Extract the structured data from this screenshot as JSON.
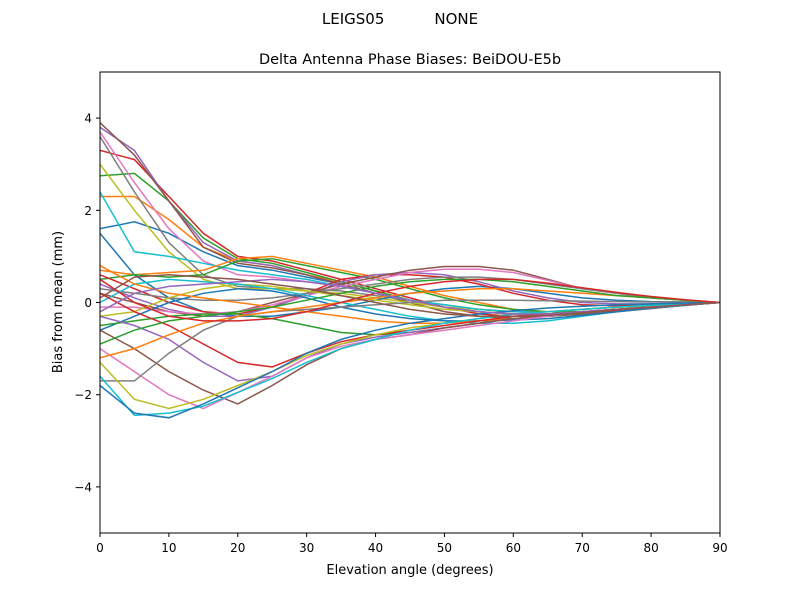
{
  "chart_data": {
    "type": "line",
    "suptitle_left": "LEIGS05",
    "suptitle_right": "NONE",
    "title": "Delta Antenna Phase Biases: BeiDOU-E5b",
    "xlabel": "Elevation angle (degrees)",
    "ylabel": "Bias from mean (mm)",
    "xlim": [
      0,
      90
    ],
    "ylim": [
      -5,
      5
    ],
    "xticks": [
      0,
      10,
      20,
      30,
      40,
      50,
      60,
      70,
      80,
      90
    ],
    "yticks": [
      -4,
      -2,
      0,
      2,
      4
    ],
    "ytick_labels": [
      "−4",
      "−2",
      "0",
      "2",
      "4"
    ],
    "grid": false,
    "colors": [
      "#1f77b4",
      "#ff7f0e",
      "#2ca02c",
      "#d62728",
      "#9467bd",
      "#8c564b",
      "#e377c2",
      "#7f7f7f",
      "#bcbd22",
      "#17becf"
    ],
    "x": [
      0,
      5,
      10,
      15,
      20,
      25,
      30,
      35,
      40,
      45,
      50,
      55,
      60,
      65,
      70,
      75,
      80,
      85,
      90
    ],
    "series": [
      {
        "values": [
          1.6,
          1.75,
          1.5,
          1.1,
          0.8,
          0.7,
          0.55,
          0.4,
          0.2,
          0.05,
          -0.1,
          -0.2,
          -0.25,
          -0.25,
          -0.2,
          -0.15,
          -0.1,
          -0.05,
          0
        ]
      },
      {
        "values": [
          2.3,
          2.3,
          1.8,
          1.2,
          0.9,
          0.8,
          0.6,
          0.45,
          0.25,
          0.05,
          -0.1,
          -0.2,
          -0.25,
          -0.25,
          -0.2,
          -0.15,
          -0.1,
          -0.05,
          0
        ]
      },
      {
        "values": [
          2.75,
          2.8,
          2.2,
          1.4,
          0.95,
          0.85,
          0.65,
          0.45,
          0.25,
          0.05,
          -0.1,
          -0.2,
          -0.25,
          -0.25,
          -0.2,
          -0.15,
          -0.1,
          -0.05,
          0
        ]
      },
      {
        "values": [
          3.3,
          3.1,
          2.3,
          1.5,
          1.0,
          0.9,
          0.7,
          0.5,
          0.3,
          0.1,
          -0.1,
          -0.25,
          -0.3,
          -0.3,
          -0.25,
          -0.18,
          -0.12,
          -0.06,
          0
        ]
      },
      {
        "values": [
          3.8,
          3.3,
          2.2,
          1.3,
          0.9,
          0.8,
          0.6,
          0.4,
          0.2,
          0.0,
          -0.2,
          -0.3,
          -0.35,
          -0.3,
          -0.25,
          -0.2,
          -0.13,
          -0.06,
          0
        ]
      },
      {
        "values": [
          3.9,
          3.2,
          2.2,
          1.2,
          0.85,
          0.75,
          0.6,
          0.4,
          0.2,
          0.0,
          -0.2,
          -0.3,
          -0.35,
          -0.3,
          -0.25,
          -0.2,
          -0.13,
          -0.06,
          0
        ]
      },
      {
        "values": [
          3.7,
          2.6,
          1.6,
          0.9,
          0.6,
          0.55,
          0.45,
          0.35,
          0.2,
          0.05,
          -0.1,
          -0.2,
          -0.25,
          -0.25,
          -0.2,
          -0.15,
          -0.1,
          -0.05,
          0
        ]
      },
      {
        "values": [
          3.6,
          2.4,
          1.3,
          0.6,
          0.35,
          0.3,
          0.3,
          0.25,
          0.15,
          0.05,
          -0.05,
          -0.15,
          -0.2,
          -0.2,
          -0.15,
          -0.1,
          -0.07,
          -0.03,
          0
        ]
      },
      {
        "values": [
          3.0,
          2.0,
          1.1,
          0.5,
          0.3,
          0.3,
          0.25,
          0.2,
          0.1,
          0.0,
          -0.1,
          -0.15,
          -0.2,
          -0.2,
          -0.15,
          -0.1,
          -0.07,
          -0.03,
          0
        ]
      },
      {
        "values": [
          2.4,
          1.1,
          1.0,
          0.85,
          0.7,
          0.6,
          0.5,
          0.35,
          0.2,
          0.05,
          -0.05,
          -0.15,
          -0.2,
          -0.2,
          -0.15,
          -0.1,
          -0.07,
          -0.03,
          0
        ]
      },
      {
        "values": [
          1.5,
          0.6,
          0.1,
          -0.2,
          -0.3,
          -0.3,
          -0.2,
          -0.1,
          0.05,
          0.2,
          0.3,
          0.35,
          0.3,
          0.2,
          0.1,
          0.05,
          0.02,
          0.01,
          0
        ]
      },
      {
        "values": [
          0.7,
          0.6,
          0.65,
          0.7,
          0.95,
          1.0,
          0.85,
          0.7,
          0.55,
          0.35,
          0.15,
          0,
          -0.15,
          -0.2,
          -0.2,
          -0.15,
          -0.1,
          -0.05,
          0
        ]
      },
      {
        "values": [
          0.5,
          0.6,
          0.55,
          0.6,
          0.9,
          0.95,
          0.8,
          0.65,
          0.5,
          0.3,
          0.1,
          -0.05,
          -0.15,
          -0.2,
          -0.2,
          -0.15,
          -0.1,
          -0.05,
          0
        ]
      },
      {
        "values": [
          0.6,
          0.3,
          0.0,
          -0.2,
          -0.25,
          -0.1,
          0.2,
          0.5,
          0.6,
          0.6,
          0.55,
          0.4,
          0.2,
          0.05,
          -0.05,
          -0.07,
          -0.05,
          -0.02,
          0
        ]
      },
      {
        "values": [
          0.4,
          0.1,
          -0.15,
          -0.3,
          -0.3,
          -0.1,
          0.15,
          0.45,
          0.6,
          0.65,
          0.6,
          0.45,
          0.25,
          0.1,
          0,
          -0.03,
          -0.03,
          -0.01,
          0
        ]
      },
      {
        "values": [
          0.2,
          0.0,
          -0.2,
          -0.3,
          -0.2,
          0.0,
          0.2,
          0.4,
          0.55,
          0.7,
          0.78,
          0.78,
          0.7,
          0.5,
          0.3,
          0.2,
          0.1,
          0.05,
          0
        ]
      },
      {
        "values": [
          -0.1,
          -0.1,
          -0.2,
          -0.25,
          -0.2,
          -0.05,
          0.15,
          0.35,
          0.5,
          0.65,
          0.72,
          0.72,
          0.65,
          0.48,
          0.3,
          0.2,
          0.1,
          0.05,
          0
        ]
      },
      {
        "values": [
          0.3,
          0.2,
          0.1,
          0.05,
          0.05,
          0.1,
          0.2,
          0.3,
          0.4,
          0.5,
          0.55,
          0.55,
          0.5,
          0.4,
          0.3,
          0.2,
          0.1,
          0.05,
          0
        ]
      },
      {
        "values": [
          -0.3,
          -0.2,
          0.1,
          0.3,
          0.4,
          0.35,
          0.25,
          0.15,
          0.05,
          -0.05,
          -0.15,
          -0.2,
          -0.25,
          -0.2,
          -0.15,
          -0.1,
          -0.07,
          -0.03,
          0
        ]
      },
      {
        "values": [
          0.0,
          0.4,
          0.5,
          0.45,
          0.4,
          0.3,
          0.15,
          0.0,
          -0.15,
          -0.3,
          -0.4,
          -0.45,
          -0.45,
          -0.4,
          -0.3,
          -0.2,
          -0.12,
          -0.06,
          0
        ]
      },
      {
        "values": [
          -0.6,
          -0.3,
          0.0,
          0.2,
          0.3,
          0.25,
          0.1,
          -0.1,
          -0.25,
          -0.35,
          -0.4,
          -0.4,
          -0.38,
          -0.35,
          -0.28,
          -0.2,
          -0.12,
          -0.06,
          0
        ]
      },
      {
        "values": [
          0.8,
          0.4,
          0.2,
          0.1,
          0.0,
          -0.1,
          -0.2,
          -0.3,
          -0.4,
          -0.45,
          -0.45,
          -0.4,
          -0.35,
          -0.3,
          -0.22,
          -0.15,
          -0.1,
          -0.05,
          0
        ]
      },
      {
        "values": [
          -0.5,
          -0.4,
          -0.3,
          -0.25,
          -0.25,
          -0.35,
          -0.5,
          -0.65,
          -0.7,
          -0.65,
          -0.55,
          -0.45,
          -0.35,
          -0.3,
          -0.22,
          -0.15,
          -0.1,
          -0.05,
          0
        ]
      },
      {
        "values": [
          0.2,
          -0.2,
          -0.5,
          -0.9,
          -1.3,
          -1.4,
          -1.1,
          -0.85,
          -0.7,
          -0.6,
          -0.5,
          -0.4,
          -0.3,
          -0.25,
          -0.2,
          -0.15,
          -0.1,
          -0.05,
          0
        ]
      },
      {
        "values": [
          -0.3,
          -0.5,
          -0.8,
          -1.3,
          -1.7,
          -1.6,
          -1.2,
          -0.9,
          -0.75,
          -0.65,
          -0.55,
          -0.45,
          -0.35,
          -0.3,
          -0.2,
          -0.15,
          -0.1,
          -0.05,
          0
        ]
      },
      {
        "values": [
          -0.6,
          -1.0,
          -1.5,
          -1.9,
          -2.2,
          -1.8,
          -1.35,
          -1.0,
          -0.8,
          -0.7,
          -0.55,
          -0.45,
          -0.35,
          -0.3,
          -0.2,
          -0.15,
          -0.1,
          -0.05,
          0
        ]
      },
      {
        "values": [
          -1.0,
          -1.5,
          -2.0,
          -2.3,
          -1.95,
          -1.6,
          -1.2,
          -0.95,
          -0.8,
          -0.7,
          -0.6,
          -0.5,
          -0.4,
          -0.3,
          -0.2,
          -0.15,
          -0.1,
          -0.05,
          0
        ]
      },
      {
        "values": [
          -1.7,
          -1.7,
          -1.1,
          -0.6,
          -0.3,
          -0.2,
          -0.15,
          -0.1,
          -0.05,
          0,
          0.05,
          0.05,
          0.05,
          0.04,
          0.03,
          0.02,
          0.01,
          0.01,
          0
        ]
      },
      {
        "values": [
          -1.3,
          -2.1,
          -2.3,
          -2.1,
          -1.8,
          -1.5,
          -1.15,
          -0.9,
          -0.7,
          -0.55,
          -0.45,
          -0.35,
          -0.25,
          -0.2,
          -0.15,
          -0.1,
          -0.06,
          -0.03,
          0
        ]
      },
      {
        "values": [
          -1.6,
          -2.45,
          -2.4,
          -2.25,
          -1.95,
          -1.65,
          -1.3,
          -1.0,
          -0.8,
          -0.6,
          -0.45,
          -0.35,
          -0.25,
          -0.2,
          -0.15,
          -0.1,
          -0.06,
          -0.03,
          0
        ]
      },
      {
        "values": [
          -1.8,
          -2.4,
          -2.5,
          -2.2,
          -1.85,
          -1.5,
          -1.1,
          -0.8,
          -0.6,
          -0.45,
          -0.35,
          -0.25,
          -0.18,
          -0.12,
          -0.08,
          -0.05,
          -0.03,
          -0.01,
          0
        ]
      },
      {
        "values": [
          -1.2,
          -1.0,
          -0.7,
          -0.45,
          -0.3,
          -0.2,
          -0.1,
          0,
          0.1,
          0.2,
          0.25,
          0.3,
          0.3,
          0.25,
          0.2,
          0.15,
          0.1,
          0.05,
          0
        ]
      },
      {
        "values": [
          -0.9,
          -0.6,
          -0.4,
          -0.3,
          -0.2,
          -0.1,
          0.05,
          0.2,
          0.35,
          0.45,
          0.5,
          0.5,
          0.45,
          0.35,
          0.25,
          0.15,
          0.1,
          0.05,
          0
        ]
      },
      {
        "values": [
          0.5,
          0.0,
          -0.3,
          -0.4,
          -0.4,
          -0.35,
          -0.2,
          0.0,
          0.2,
          0.35,
          0.45,
          0.5,
          0.5,
          0.42,
          0.32,
          0.22,
          0.13,
          0.06,
          0
        ]
      },
      {
        "values": [
          -0.2,
          0.2,
          0.35,
          0.4,
          0.45,
          0.5,
          0.45,
          0.35,
          0.2,
          0.05,
          -0.1,
          -0.2,
          -0.25,
          -0.25,
          -0.2,
          -0.15,
          -0.1,
          -0.05,
          0
        ]
      },
      {
        "values": [
          0.1,
          0.55,
          0.6,
          0.55,
          0.5,
          0.4,
          0.3,
          0.15,
          0.0,
          -0.15,
          -0.25,
          -0.3,
          -0.3,
          -0.28,
          -0.22,
          -0.15,
          -0.1,
          -0.05,
          0
        ]
      }
    ]
  }
}
